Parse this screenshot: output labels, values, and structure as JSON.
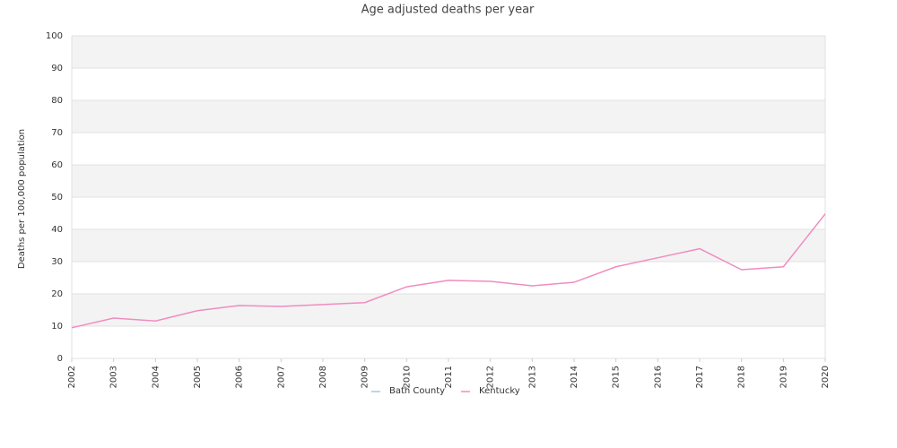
{
  "chart_data": {
    "type": "line",
    "title": "Age adjusted deaths per year",
    "y_label": "Deaths per 100,000 population",
    "x": [
      2002,
      2003,
      2004,
      2005,
      2006,
      2007,
      2008,
      2009,
      2010,
      2011,
      2012,
      2013,
      2014,
      2015,
      2016,
      2017,
      2018,
      2019,
      2020
    ],
    "series": [
      {
        "name": "Bath County",
        "color": "#9ecae1",
        "values": [
          null,
          null,
          null,
          null,
          null,
          null,
          null,
          null,
          null,
          null,
          null,
          null,
          null,
          null,
          null,
          null,
          null,
          null,
          null
        ]
      },
      {
        "name": "Kentucky",
        "color": "#f08cc0",
        "values": [
          9.5,
          12.5,
          11.6,
          14.8,
          16.4,
          16.1,
          16.7,
          17.3,
          22.2,
          24.2,
          23.9,
          22.5,
          23.6,
          28.4,
          31.2,
          34.0,
          27.5,
          28.4,
          44.8
        ]
      }
    ],
    "xlim": [
      2002,
      2020
    ],
    "ylim": [
      0,
      100
    ],
    "yticks": [
      0,
      10,
      20,
      30,
      40,
      50,
      60,
      70,
      80,
      90,
      100
    ],
    "grid": true,
    "legend": "bottom"
  }
}
